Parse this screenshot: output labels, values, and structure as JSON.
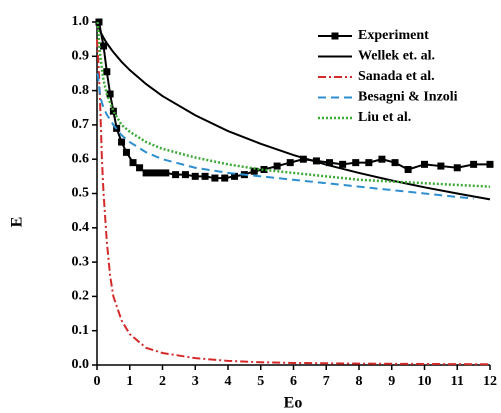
{
  "chart_data": {
    "type": "line",
    "xlabel": "Eo",
    "ylabel": "E",
    "xlim": [
      0,
      12
    ],
    "ylim": [
      0,
      1
    ],
    "xticks": [
      0,
      1,
      2,
      3,
      4,
      5,
      6,
      7,
      8,
      9,
      10,
      11,
      12
    ],
    "yticks": [
      {
        "value": 0,
        "label": "0.0"
      },
      0.1,
      0.2,
      0.3,
      0.4,
      0.5,
      0.6,
      0.7,
      0.8,
      0.9,
      {
        "value": 1,
        "label": "1.0"
      }
    ],
    "legend": "upper right",
    "series": [
      {
        "name": "Experiment",
        "color": "#000000",
        "dash": "solid",
        "marker": "square",
        "x": [
          0.06,
          0.2,
          0.3,
          0.4,
          0.5,
          0.6,
          0.75,
          0.9,
          1.1,
          1.3,
          1.5,
          1.7,
          1.9,
          2.1,
          2.4,
          2.7,
          3.0,
          3.3,
          3.6,
          3.9,
          4.2,
          4.5,
          4.8,
          5.1,
          5.5,
          5.9,
          6.3,
          6.7,
          7.1,
          7.5,
          7.9,
          8.3,
          8.7,
          9.1,
          9.5,
          10.0,
          10.5,
          11.0,
          11.5,
          12.0
        ],
        "values": [
          1.0,
          0.93,
          0.855,
          0.79,
          0.74,
          0.69,
          0.65,
          0.62,
          0.59,
          0.575,
          0.56,
          0.56,
          0.56,
          0.56,
          0.555,
          0.555,
          0.55,
          0.55,
          0.545,
          0.545,
          0.55,
          0.555,
          0.565,
          0.57,
          0.58,
          0.59,
          0.6,
          0.595,
          0.59,
          0.585,
          0.59,
          0.59,
          0.6,
          0.59,
          0.57,
          0.585,
          0.58,
          0.575,
          0.585,
          0.585
        ]
      },
      {
        "name": "Wellek et. al.",
        "color": "#000000",
        "dash": "solid",
        "x": [
          0,
          0.1,
          0.2,
          0.3,
          0.5,
          0.75,
          1,
          1.5,
          2,
          3,
          4,
          5,
          6,
          7,
          8,
          9,
          10,
          11,
          12
        ],
        "values": [
          1,
          0.972,
          0.954,
          0.938,
          0.912,
          0.884,
          0.86,
          0.819,
          0.784,
          0.728,
          0.682,
          0.645,
          0.612,
          0.584,
          0.56,
          0.538,
          0.518,
          0.5,
          0.483
        ]
      },
      {
        "name": "Sanada et al.",
        "color": "#d42a2a",
        "dash": "dashdot",
        "x": [
          0,
          0.05,
          0.1,
          0.15,
          0.2,
          0.3,
          0.4,
          0.5,
          0.75,
          1,
          1.5,
          2,
          3,
          4,
          5,
          6,
          8,
          10,
          12
        ],
        "values": [
          0.95,
          0.87,
          0.75,
          0.6,
          0.5,
          0.36,
          0.26,
          0.2,
          0.13,
          0.09,
          0.05,
          0.035,
          0.02,
          0.012,
          0.008,
          0.006,
          0.004,
          0.003,
          0.002
        ]
      },
      {
        "name": "Besagni & Inzoli",
        "color": "#2e8fd0",
        "dash": "dash",
        "x": [
          0.02,
          0.1,
          0.2,
          0.3,
          0.5,
          0.75,
          1,
          1.5,
          2,
          3,
          4,
          5,
          6,
          7,
          8,
          9,
          10,
          11,
          11.5
        ],
        "values": [
          0.85,
          0.78,
          0.75,
          0.73,
          0.7,
          0.67,
          0.65,
          0.62,
          0.6,
          0.575,
          0.56,
          0.55,
          0.54,
          0.53,
          0.52,
          0.51,
          0.5,
          0.49,
          0.485
        ]
      },
      {
        "name": "Liu et al.",
        "color": "#3aaa35",
        "dash": "dot",
        "x": [
          0.02,
          0.1,
          0.2,
          0.3,
          0.5,
          0.75,
          1,
          1.5,
          2,
          3,
          4,
          5,
          6,
          7,
          8,
          9,
          10,
          11,
          12
        ],
        "values": [
          1.0,
          0.9,
          0.83,
          0.79,
          0.74,
          0.7,
          0.68,
          0.65,
          0.63,
          0.605,
          0.585,
          0.57,
          0.56,
          0.55,
          0.54,
          0.535,
          0.53,
          0.525,
          0.52
        ]
      }
    ]
  }
}
